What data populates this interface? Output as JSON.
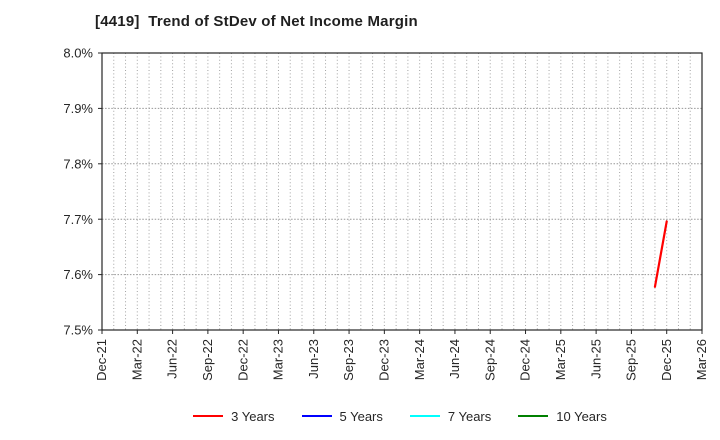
{
  "chart_data": {
    "type": "line",
    "title": "[4419]  Trend of StDev of Net Income Margin",
    "xlabel": "",
    "ylabel": "",
    "ylim": [
      7.5,
      8.0
    ],
    "yticks": {
      "values": [
        7.5,
        7.6,
        7.7,
        7.8,
        7.9,
        8.0
      ],
      "labels": [
        "7.5%",
        "7.6%",
        "7.7%",
        "7.8%",
        "7.9%",
        "8.0%"
      ]
    },
    "x_axis": {
      "start": "Dec-21",
      "end": "Mar-26",
      "months_per_tick": 3,
      "tick_labels": [
        "Dec-21",
        "Mar-22",
        "Jun-22",
        "Sep-22",
        "Dec-22",
        "Mar-23",
        "Jun-23",
        "Sep-23",
        "Dec-23",
        "Mar-24",
        "Jun-24",
        "Sep-24",
        "Dec-24",
        "Mar-25",
        "Jun-25",
        "Sep-25",
        "Dec-25",
        "Mar-26"
      ]
    },
    "grid": {
      "horizontal_style": "dense-dotted",
      "vertical_style": "dotted-monthly",
      "grid_color": "#a3a3a3"
    },
    "axis_color": "#262626",
    "tick_label_color": "#262626",
    "series": [
      {
        "name": "3 Years",
        "color": "#ff0000",
        "points": [
          {
            "x": "Nov-25",
            "y": 7.578
          },
          {
            "x": "Dec-25",
            "y": 7.696
          }
        ]
      },
      {
        "name": "5 Years",
        "color": "#0000ff",
        "points": []
      },
      {
        "name": "7 Years",
        "color": "#00ffff",
        "points": []
      },
      {
        "name": "10 Years",
        "color": "#008000",
        "points": []
      }
    ],
    "legend_position": "bottom"
  }
}
